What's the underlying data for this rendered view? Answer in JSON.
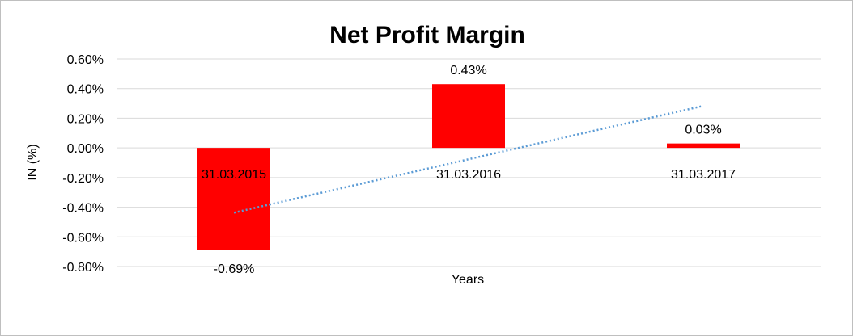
{
  "chart_data": {
    "type": "bar",
    "title": "Net Profit Margin",
    "xlabel": "Years",
    "ylabel": "IN (%)",
    "categories": [
      "31.03.2015",
      "31.03.2016",
      "31.03.2017"
    ],
    "values": [
      -0.69,
      0.43,
      0.03
    ],
    "data_labels": [
      "-0.69%",
      "0.43%",
      "0.03%"
    ],
    "y_ticks": [
      0.6,
      0.4,
      0.2,
      0.0,
      -0.2,
      -0.4,
      -0.6,
      -0.8
    ],
    "y_tick_labels": [
      "0.60%",
      "0.40%",
      "0.20%",
      "0.00%",
      "-0.20%",
      "-0.40%",
      "-0.60%",
      "-0.80%"
    ],
    "ylim": [
      -0.8,
      0.6
    ],
    "grid": true,
    "trendline": "linear",
    "colors": {
      "bar": "#ff0000",
      "trendline": "#5b9bd5",
      "grid": "#d9d9d9"
    }
  }
}
